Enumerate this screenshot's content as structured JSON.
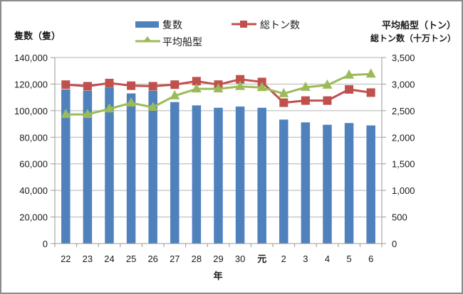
{
  "chart_data": {
    "type": "bar+line",
    "title": "",
    "categories": [
      "22",
      "23",
      "24",
      "25",
      "26",
      "27",
      "28",
      "29",
      "30",
      "元",
      "2",
      "3",
      "4",
      "5",
      "6"
    ],
    "xlabel": "年",
    "ylabel_left": "隻数（隻）",
    "ylabel_right_line1": "平均船型（トン）",
    "ylabel_right_line2": "総トン数（十万トン）",
    "ylim_left": [
      0,
      140000
    ],
    "ylim_right": [
      0,
      3500
    ],
    "yticks_left": [
      "0",
      "20,000",
      "40,000",
      "60,000",
      "80,000",
      "100,000",
      "120,000",
      "140,000"
    ],
    "yticks_right": [
      "0",
      "500",
      "1,000",
      "1,500",
      "2,000",
      "2,500",
      "3,000",
      "3,500"
    ],
    "grid": true,
    "legend_position": "top",
    "series": [
      {
        "name": "隻数",
        "type": "bar",
        "axis": "left",
        "color": "#4F81BD",
        "values": [
          116000,
          115000,
          117500,
          113000,
          115000,
          106500,
          104000,
          102200,
          103100,
          102200,
          93300,
          91200,
          89400,
          90700,
          88900
        ]
      },
      {
        "name": "総トン数",
        "type": "line",
        "marker": "square",
        "axis": "right",
        "color": "#C0504D",
        "values": [
          2990,
          2960,
          3020,
          2970,
          2960,
          2990,
          3055,
          2990,
          3090,
          3040,
          2650,
          2690,
          2690,
          2900,
          2840
        ]
      },
      {
        "name": "平均船型",
        "type": "line",
        "marker": "triangle",
        "axis": "right",
        "color": "#9BBB59",
        "values": [
          2430,
          2430,
          2535,
          2645,
          2565,
          2780,
          2910,
          2910,
          2955,
          2935,
          2820,
          2940,
          2980,
          3170,
          3190
        ]
      }
    ]
  },
  "legend": {
    "items": [
      {
        "label": "隻数"
      },
      {
        "label": "総トン数"
      },
      {
        "label": "平均船型"
      }
    ]
  },
  "axes": {
    "left_title": "隻数（隻）",
    "right_title_1": "平均船型（トン）",
    "right_title_2": "総トン数（十万トン）",
    "x_title": "年"
  }
}
